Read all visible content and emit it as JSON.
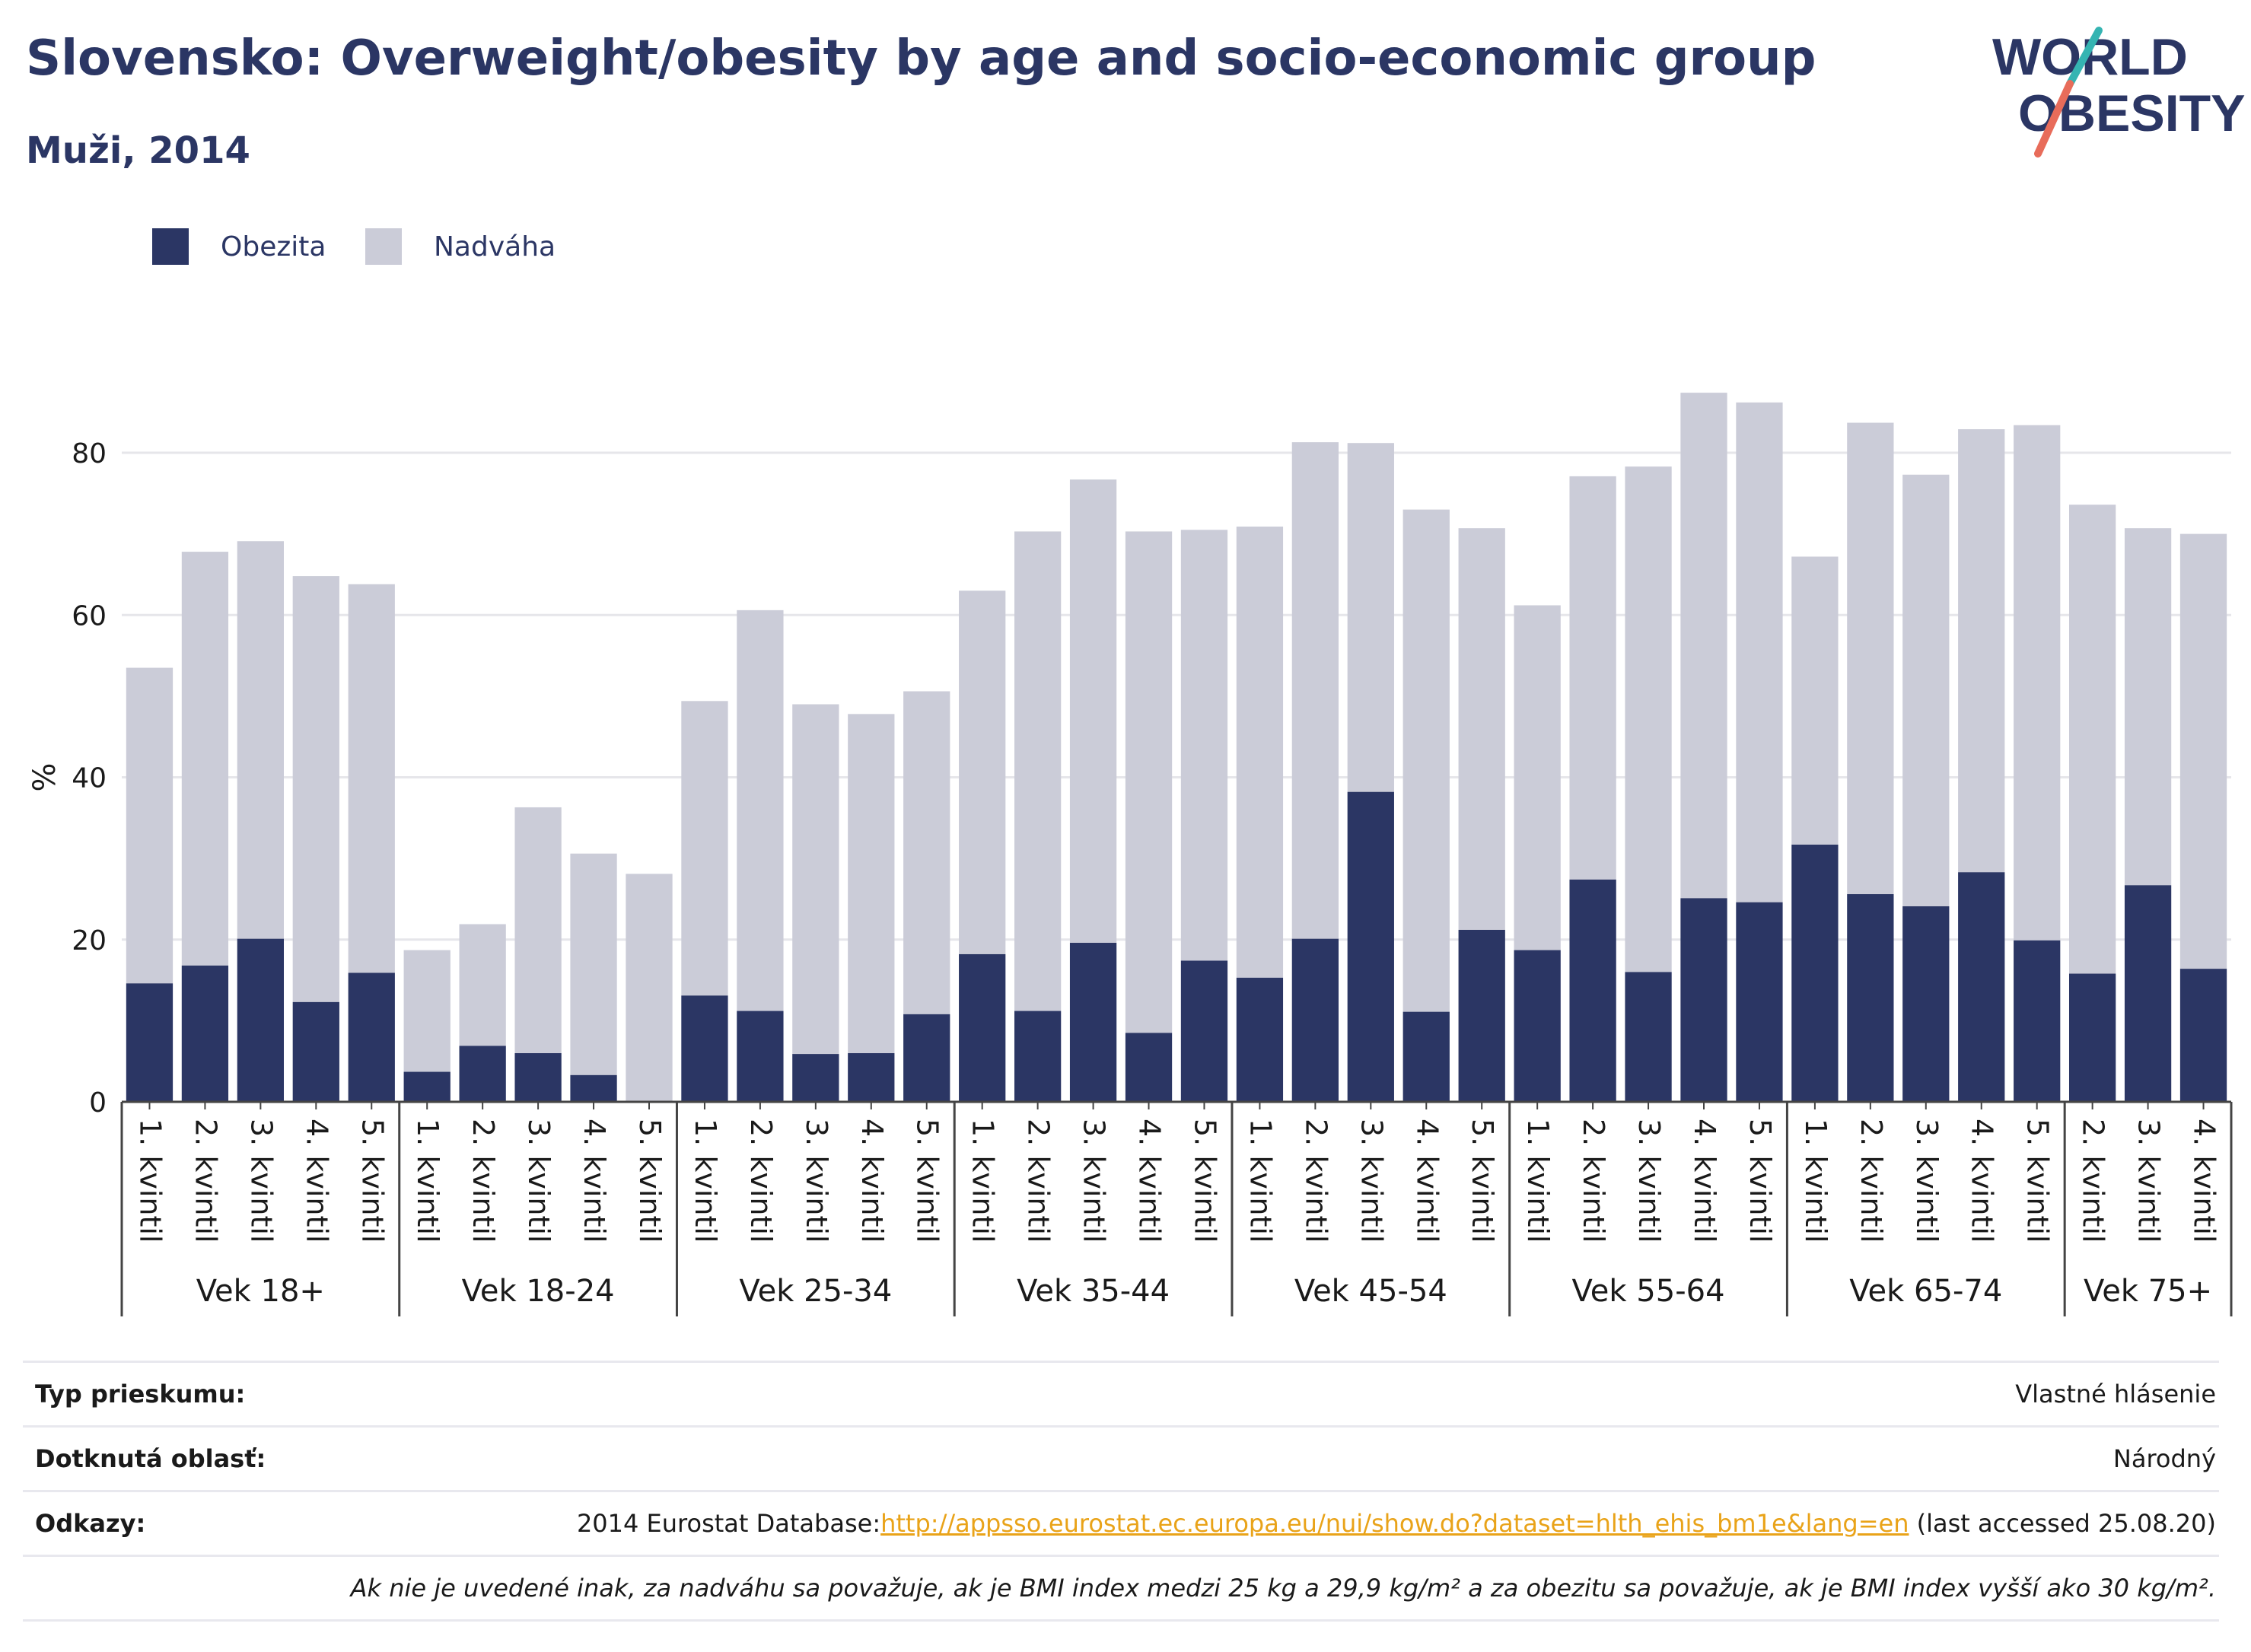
{
  "header": {
    "title": "Slovensko: Overweight/obesity by age and socio-economic group",
    "subtitle": "Muži, 2014"
  },
  "logo": {
    "line1": "WORLD",
    "line2": "OBESITY"
  },
  "legend": [
    {
      "label": "Obezita",
      "color": "#2b3664"
    },
    {
      "label": "Nadváha",
      "color": "#cbccd8"
    }
  ],
  "chart_data": {
    "type": "bar",
    "stacked": true,
    "ylabel": "%",
    "ylim": [
      0,
      90
    ],
    "yticks": [
      0,
      20,
      40,
      60,
      80
    ],
    "grid": true,
    "legend_position": "top-left",
    "groups": [
      {
        "label": "Vek 18+",
        "categories": [
          "1. kvintil",
          "2. kvintil",
          "3. kvintil",
          "4. kvintil",
          "5. kvintil"
        ]
      },
      {
        "label": "Vek 18-24",
        "categories": [
          "1. kvintil",
          "2. kvintil",
          "3. kvintil",
          "4. kvintil",
          "5. kvintil"
        ]
      },
      {
        "label": "Vek 25-34",
        "categories": [
          "1. kvintil",
          "2. kvintil",
          "3. kvintil",
          "4. kvintil",
          "5. kvintil"
        ]
      },
      {
        "label": "Vek 35-44",
        "categories": [
          "1. kvintil",
          "2. kvintil",
          "3. kvintil",
          "4. kvintil",
          "5. kvintil"
        ]
      },
      {
        "label": "Vek 45-54",
        "categories": [
          "1. kvintil",
          "2. kvintil",
          "3. kvintil",
          "4. kvintil",
          "5. kvintil"
        ]
      },
      {
        "label": "Vek 55-64",
        "categories": [
          "1. kvintil",
          "2. kvintil",
          "3. kvintil",
          "4. kvintil",
          "5. kvintil"
        ]
      },
      {
        "label": "Vek 65-74",
        "categories": [
          "1. kvintil",
          "2. kvintil",
          "3. kvintil",
          "4. kvintil",
          "5. kvintil"
        ]
      },
      {
        "label": "Vek 75+",
        "categories": [
          "2. kvintil",
          "3. kvintil",
          "4. kvintil"
        ]
      }
    ],
    "series": [
      {
        "name": "Obezita",
        "color": "#2b3664",
        "values": [
          14.6,
          16.8,
          20.1,
          12.3,
          15.9,
          3.7,
          6.9,
          6.0,
          3.3,
          0,
          13.1,
          11.2,
          5.9,
          6.0,
          10.8,
          18.2,
          11.2,
          19.6,
          8.5,
          17.4,
          15.3,
          20.1,
          38.2,
          11.1,
          21.2,
          18.7,
          27.4,
          16.0,
          25.1,
          24.6,
          31.7,
          25.6,
          24.1,
          28.3,
          19.9,
          15.8,
          26.7,
          16.4
        ]
      },
      {
        "name": "Nadváha",
        "color": "#cbccd8",
        "values": [
          38.9,
          51.0,
          49.0,
          52.5,
          47.9,
          15.0,
          15.0,
          30.3,
          27.3,
          28.1,
          36.3,
          49.4,
          43.1,
          41.8,
          39.8,
          44.8,
          59.1,
          57.1,
          61.8,
          53.1,
          55.6,
          61.2,
          43.0,
          61.9,
          49.5,
          42.5,
          49.7,
          62.3,
          62.3,
          61.6,
          35.5,
          58.1,
          53.2,
          54.6,
          63.5,
          57.8,
          44.0,
          53.6
        ]
      }
    ]
  },
  "meta": {
    "survey_label": "Typ prieskumu:",
    "survey_value": "Vlastné hlásenie",
    "area_label": "Dotknutá oblasť:",
    "area_value": "Národný",
    "refs_label": "Odkazy:",
    "refs_prefix": "2014 Eurostat Database:",
    "refs_link": "http://appsso.eurostat.ec.europa.eu/nui/show.do?dataset=hlth_ehis_bm1e&lang=en",
    "refs_suffix": " (last accessed 25.08.20)",
    "note": "Ak nie je uvedené inak, za nadváhu sa považuje, ak je BMI index medzi 25 kg a 29,9 kg/m² a za obezitu sa považuje, ak je BMI index vyšší ako 30 kg/m²."
  }
}
